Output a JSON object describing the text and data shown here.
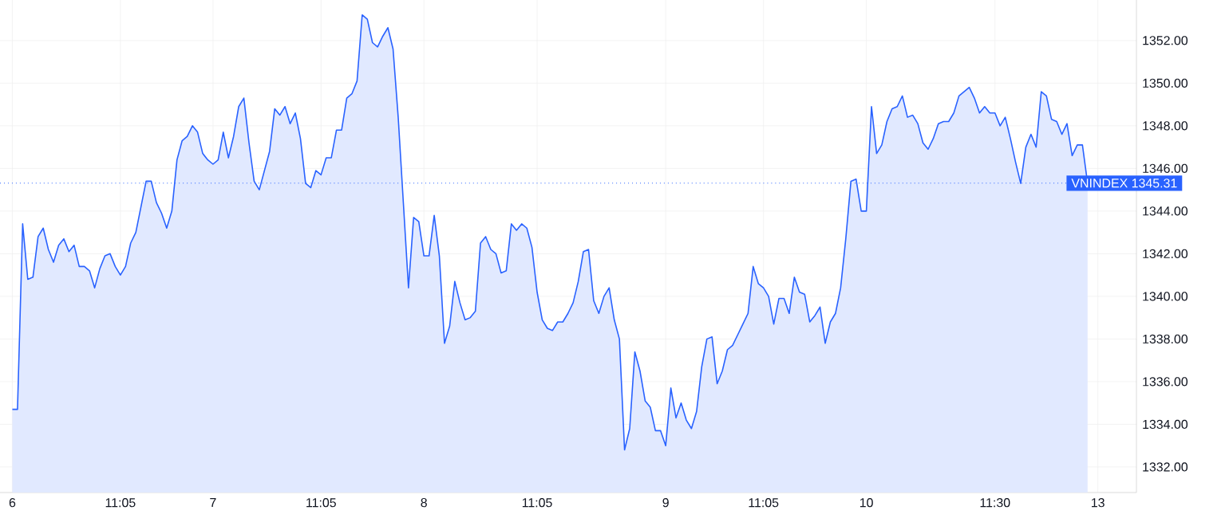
{
  "chart_data": {
    "type": "area",
    "categories": [
      "6",
      null,
      null,
      null,
      null,
      null,
      null,
      null,
      null,
      null,
      null,
      null,
      null,
      null,
      null,
      null,
      null,
      null,
      null,
      null,
      null,
      "11:05",
      null,
      null,
      null,
      null,
      null,
      null,
      null,
      null,
      null,
      null,
      null,
      null,
      null,
      null,
      null,
      null,
      null,
      "7",
      null,
      null,
      null,
      null,
      null,
      null,
      null,
      null,
      null,
      null,
      null,
      null,
      null,
      null,
      null,
      null,
      null,
      null,
      null,
      null,
      "11:05",
      null,
      null,
      null,
      null,
      null,
      null,
      null,
      null,
      null,
      null,
      null,
      null,
      null,
      null,
      null,
      null,
      null,
      null,
      null,
      "8",
      null,
      null,
      null,
      null,
      null,
      null,
      null,
      null,
      null,
      null,
      null,
      null,
      null,
      null,
      null,
      null,
      null,
      null,
      null,
      null,
      null,
      "11:05",
      null,
      null,
      null,
      null,
      null,
      null,
      null,
      null,
      null,
      null,
      null,
      null,
      null,
      null,
      null,
      null,
      null,
      null,
      null,
      null,
      null,
      null,
      null,
      null,
      "9",
      null,
      null,
      null,
      null,
      null,
      null,
      null,
      null,
      null,
      null,
      null,
      null,
      null,
      null,
      null,
      null,
      null,
      null,
      "11:05",
      null,
      null,
      null,
      null,
      null,
      null,
      null,
      null,
      null,
      null,
      null,
      null,
      null,
      null,
      null,
      null,
      null,
      null,
      null,
      "10",
      null,
      null,
      null,
      null,
      null,
      null,
      null,
      null,
      null,
      null,
      null,
      null,
      null,
      null,
      null,
      null,
      null,
      null,
      null,
      null,
      null,
      null,
      null,
      null,
      "11:30",
      null,
      null,
      null,
      null,
      null,
      null,
      null,
      null,
      null,
      null,
      null,
      null,
      null,
      null,
      null,
      null,
      null,
      null,
      null,
      "13"
    ],
    "values": [
      1334.7,
      1334.7,
      1343.4,
      1340.8,
      1340.9,
      1342.8,
      1343.2,
      1342.2,
      1341.6,
      1342.4,
      1342.7,
      1342.1,
      1342.4,
      1341.4,
      1341.4,
      1341.2,
      1340.4,
      1341.3,
      1341.9,
      1342.0,
      1341.4,
      1341.0,
      1341.4,
      1342.5,
      1343.0,
      1344.2,
      1345.4,
      1345.4,
      1344.4,
      1343.9,
      1343.2,
      1344.0,
      1346.4,
      1347.3,
      1347.5,
      1348.0,
      1347.7,
      1346.7,
      1346.4,
      1346.2,
      1346.4,
      1347.7,
      1346.5,
      1347.5,
      1348.9,
      1349.3,
      1347.2,
      1345.4,
      1345.0,
      1345.9,
      1346.8,
      1348.8,
      1348.5,
      1348.9,
      1348.1,
      1348.6,
      1347.4,
      1345.3,
      1345.1,
      1345.9,
      1345.7,
      1346.5,
      1346.5,
      1347.8,
      1347.8,
      1349.3,
      1349.5,
      1350.1,
      1353.2,
      1353.0,
      1351.9,
      1351.7,
      1352.2,
      1352.6,
      1351.6,
      1348.4,
      1344.4,
      1340.4,
      1343.7,
      1343.5,
      1341.9,
      1341.9,
      1343.8,
      1341.9,
      1337.8,
      1338.6,
      1340.7,
      1339.7,
      1338.9,
      1339.0,
      1339.3,
      1342.5,
      1342.8,
      1342.2,
      1342.0,
      1341.1,
      1341.2,
      1343.4,
      1343.1,
      1343.4,
      1343.2,
      1342.3,
      1340.2,
      1338.9,
      1338.5,
      1338.4,
      1338.8,
      1338.8,
      1339.2,
      1339.7,
      1340.7,
      1342.1,
      1342.2,
      1339.8,
      1339.2,
      1340.0,
      1340.4,
      1338.9,
      1338.0,
      1332.8,
      1333.8,
      1337.4,
      1336.5,
      1335.1,
      1334.8,
      1333.7,
      1333.7,
      1333.0,
      1335.7,
      1334.3,
      1335.0,
      1334.2,
      1333.8,
      1334.6,
      1336.7,
      1338.0,
      1338.1,
      1335.9,
      1336.5,
      1337.5,
      1337.7,
      1338.2,
      1338.7,
      1339.2,
      1341.4,
      1340.6,
      1340.4,
      1340.0,
      1338.7,
      1339.9,
      1339.9,
      1339.2,
      1340.9,
      1340.2,
      1340.1,
      1338.8,
      1339.1,
      1339.5,
      1337.8,
      1338.8,
      1339.2,
      1340.4,
      1342.7,
      1345.4,
      1345.5,
      1344.0,
      1344.0,
      1348.9,
      1346.7,
      1347.1,
      1348.2,
      1348.8,
      1348.9,
      1349.4,
      1348.4,
      1348.5,
      1348.1,
      1347.2,
      1346.9,
      1347.4,
      1348.1,
      1348.2,
      1348.2,
      1348.6,
      1349.4,
      1349.6,
      1349.8,
      1349.3,
      1348.6,
      1348.9,
      1348.6,
      1348.6,
      1348.0,
      1348.4,
      1347.4,
      1346.3,
      1345.3,
      1347.0,
      1347.6,
      1347.0,
      1349.6,
      1349.4,
      1348.3,
      1348.2,
      1347.6,
      1348.1,
      1346.6,
      1347.1,
      1347.1,
      1345.31,
      null,
      null
    ],
    "color": "#2962ff",
    "ylim": [
      1330.8,
      1353.9
    ],
    "yticks": [
      {
        "value": 1332,
        "label": "1332.00"
      },
      {
        "value": 1334,
        "label": "1334.00"
      },
      {
        "value": 1336,
        "label": "1336.00"
      },
      {
        "value": 1338,
        "label": "1338.00"
      },
      {
        "value": 1340,
        "label": "1340.00"
      },
      {
        "value": 1342,
        "label": "1342.00"
      },
      {
        "value": 1344,
        "label": "1344.00"
      },
      {
        "value": 1346,
        "label": "1346.00"
      },
      {
        "value": 1348,
        "label": "1348.00"
      },
      {
        "value": 1350,
        "label": "1350.00"
      },
      {
        "value": 1352,
        "label": "1352.00"
      }
    ],
    "grid": true,
    "ref_lines": [
      {
        "axis": "y",
        "value": 1345.31,
        "label": "VNINDEX 1345.31",
        "color": "#2962ff",
        "line_style": "dotted"
      }
    ]
  }
}
